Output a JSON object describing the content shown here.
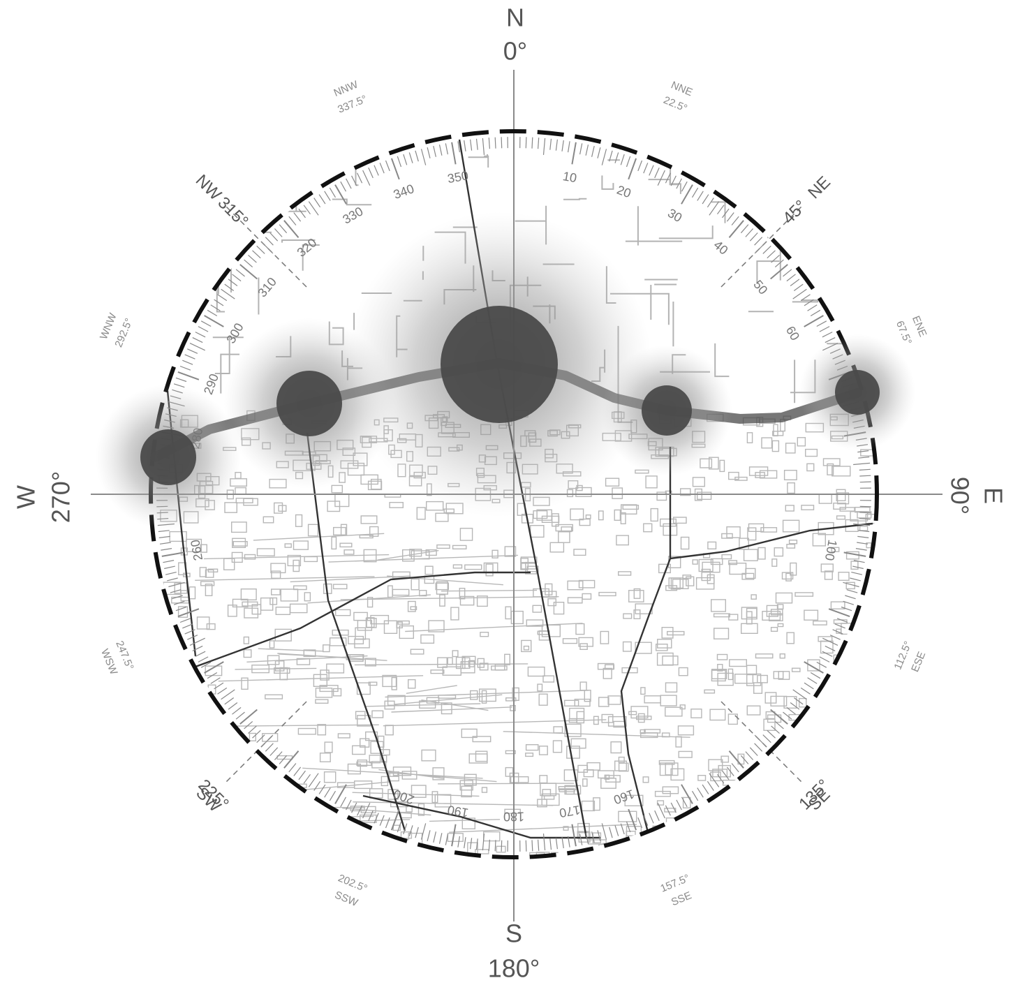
{
  "compass": {
    "cardinal": [
      {
        "dir": "N",
        "deg": "0°",
        "angle": 0
      },
      {
        "dir": "E",
        "deg": "90°",
        "angle": 90
      },
      {
        "dir": "S",
        "deg": "180°",
        "angle": 180
      },
      {
        "dir": "W",
        "deg": "270°",
        "angle": 270
      }
    ],
    "intercardinal": [
      {
        "dir": "NE",
        "deg": "45°",
        "angle": 45
      },
      {
        "dir": "SE",
        "deg": "135°",
        "angle": 135
      },
      {
        "dir": "SW",
        "deg": "225°",
        "angle": 225
      },
      {
        "dir": "NW",
        "deg": "315°",
        "angle": 315
      }
    ],
    "minor": [
      {
        "dir": "NNE",
        "deg": "22.5°",
        "angle": 22.5
      },
      {
        "dir": "ENE",
        "deg": "67.5°",
        "angle": 67.5
      },
      {
        "dir": "ESE",
        "deg": "112.5°",
        "angle": 112.5
      },
      {
        "dir": "SSE",
        "deg": "157.5°",
        "angle": 157.5
      },
      {
        "dir": "SSW",
        "deg": "202.5°",
        "angle": 202.5
      },
      {
        "dir": "WSW",
        "deg": "247.5°",
        "angle": 247.5
      },
      {
        "dir": "WNW",
        "deg": "292.5°",
        "angle": 292.5
      },
      {
        "dir": "NNW",
        "deg": "337.5°",
        "angle": 337.5
      }
    ],
    "tick_labels": [
      {
        "text": "10",
        "angle": 10
      },
      {
        "text": "20",
        "angle": 20
      },
      {
        "text": "30",
        "angle": 30
      },
      {
        "text": "40",
        "angle": 40
      },
      {
        "text": "50",
        "angle": 50
      },
      {
        "text": "60",
        "angle": 60
      },
      {
        "text": "100",
        "angle": 100
      },
      {
        "text": "160",
        "angle": 160
      },
      {
        "text": "170",
        "angle": 170
      },
      {
        "text": "180",
        "angle": 180
      },
      {
        "text": "190",
        "angle": 190
      },
      {
        "text": "200",
        "angle": 200
      },
      {
        "text": "260",
        "angle": 260
      },
      {
        "text": "280",
        "angle": 280
      },
      {
        "text": "290",
        "angle": 290
      },
      {
        "text": "300",
        "angle": 300
      },
      {
        "text": "310",
        "angle": 310
      },
      {
        "text": "320",
        "angle": 320
      },
      {
        "text": "330",
        "angle": 330
      },
      {
        "text": "340",
        "angle": 340
      },
      {
        "text": "350",
        "angle": 350
      }
    ]
  },
  "sun_path": {
    "color": "#4a4a4a",
    "halo_color": "#8c8c8c",
    "positions": [
      {
        "azimuth": 272,
        "size": "medium"
      },
      {
        "azimuth": 295,
        "size": "medium-large"
      },
      {
        "azimuth": 352,
        "size": "large"
      },
      {
        "azimuth": 68,
        "size": "small"
      },
      {
        "azimuth": 83,
        "size": "small-medium"
      }
    ]
  },
  "map": {
    "line_color": "#9a9a9a",
    "road_color": "#333333"
  }
}
